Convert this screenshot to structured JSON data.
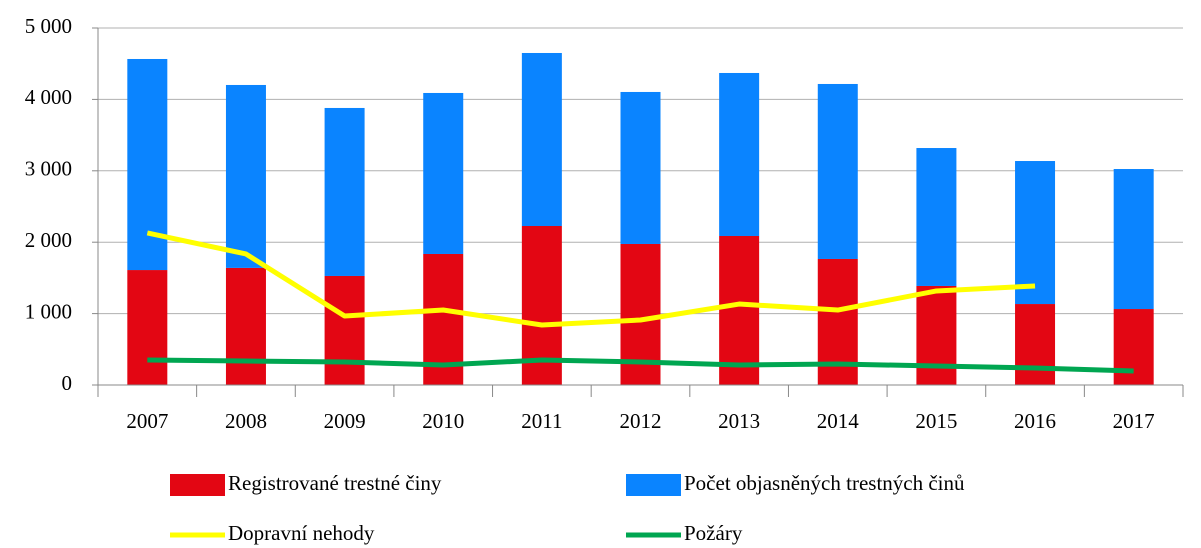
{
  "chart_data": {
    "type": "bar",
    "stacked": true,
    "categories": [
      "2007",
      "2008",
      "2009",
      "2010",
      "2011",
      "2012",
      "2013",
      "2014",
      "2015",
      "2016",
      "2017"
    ],
    "series": [
      {
        "name": "Registrované trestné činy",
        "type": "bar",
        "color": "#e30613",
        "values": [
          1610,
          1640,
          1527,
          1835,
          2227,
          1975,
          2087,
          1765,
          1387,
          1134,
          1064
        ]
      },
      {
        "name": "Počet objasněných trestných činů",
        "type": "bar",
        "color": "#0a84ff",
        "values": [
          2956,
          2562,
          2353,
          2255,
          2423,
          2129,
          2283,
          2451,
          1932,
          2003,
          1961
        ]
      },
      {
        "name": "Dopravní nehody",
        "type": "line",
        "color": "#ffff00",
        "values": [
          2130,
          1835,
          966,
          1050,
          840,
          910,
          1134,
          1050,
          1317,
          1387,
          null
        ]
      },
      {
        "name": "Požáry",
        "type": "line",
        "color": "#00a651",
        "values": [
          350,
          336,
          322,
          280,
          350,
          322,
          280,
          294,
          266,
          238,
          196
        ]
      }
    ],
    "ylim": [
      0,
      5000
    ],
    "yticks": [
      0,
      {
        "value": 1000,
        "label": "1 000"
      },
      {
        "value": 2000,
        "label": "2 000"
      },
      {
        "value": 3000,
        "label": "3 000"
      },
      {
        "value": 4000,
        "label": "4 000"
      },
      {
        "value": 5000,
        "label": "5 000"
      }
    ],
    "grid": true
  }
}
